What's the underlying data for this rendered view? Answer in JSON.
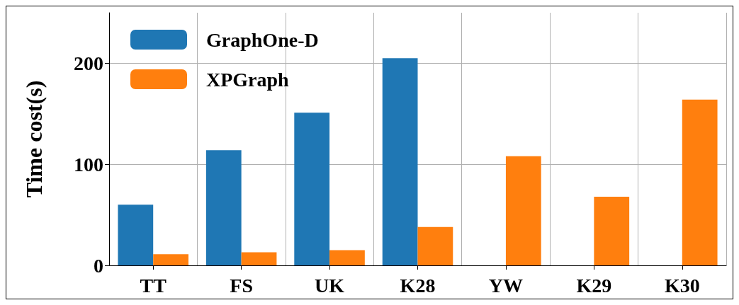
{
  "chart_data": {
    "type": "bar",
    "ylabel": "Time cost(s)",
    "categories": [
      "TT",
      "FS",
      "UK",
      "K28",
      "YW",
      "K29",
      "K30"
    ],
    "series": [
      {
        "name": "GraphOne-D",
        "color": "#1f77b4",
        "values": [
          60,
          114,
          151,
          205,
          null,
          null,
          null
        ]
      },
      {
        "name": "XPGraph",
        "color": "#ff7f0e",
        "values": [
          11,
          13,
          15,
          38,
          108,
          68,
          164
        ]
      }
    ],
    "ylim": [
      0,
      250
    ],
    "yticks": [
      0,
      100,
      200
    ],
    "grid": true,
    "legend": "top left"
  }
}
